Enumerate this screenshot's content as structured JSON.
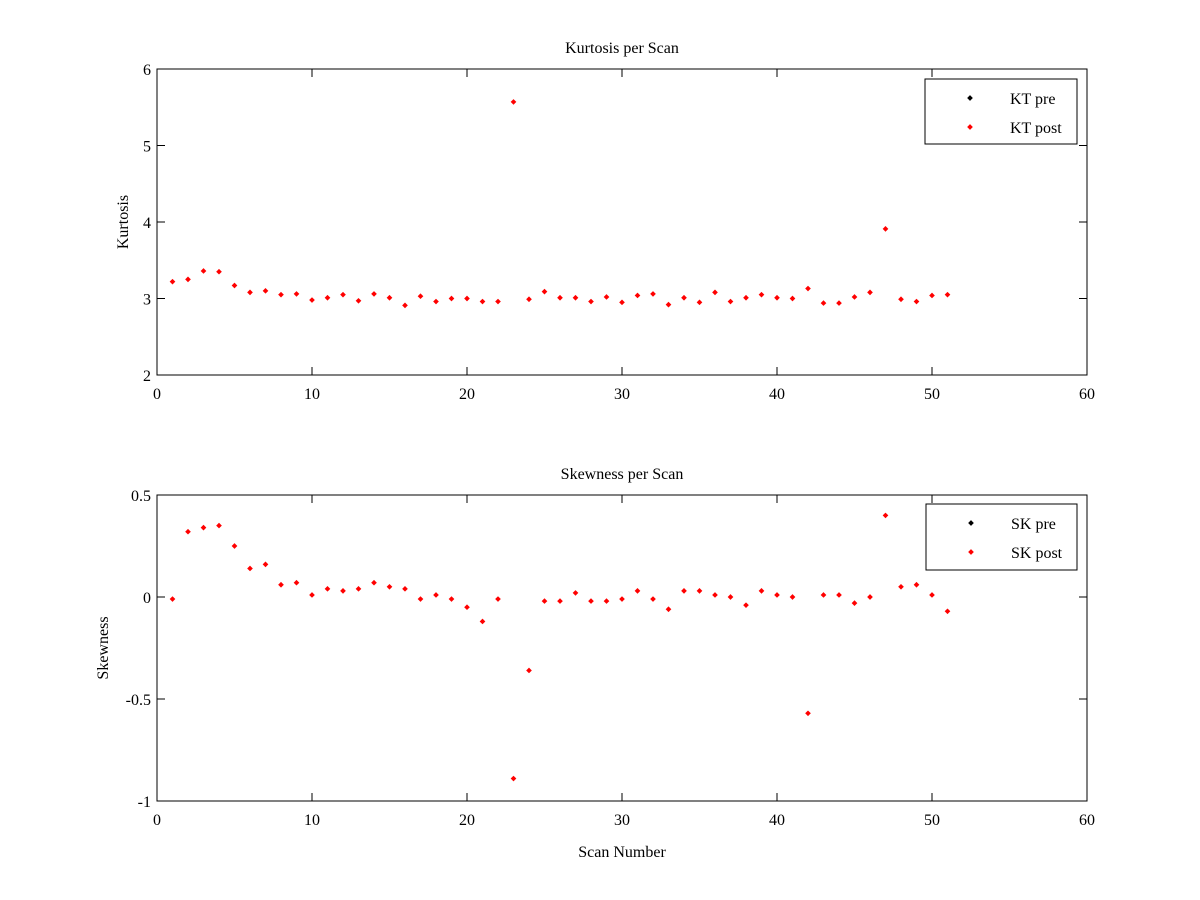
{
  "chart_data": [
    {
      "type": "scatter",
      "title": "Kurtosis per Scan",
      "xlabel": "",
      "ylabel": "Kurtosis",
      "xlim": [
        0,
        60
      ],
      "ylim": [
        2,
        6
      ],
      "xticks": [
        "0",
        "10",
        "20",
        "30",
        "40",
        "50",
        "60"
      ],
      "yticks": [
        "2",
        "3",
        "4",
        "5",
        "6"
      ],
      "grid": false,
      "legend_position": "top-right",
      "series": [
        {
          "name": "KT pre",
          "color": "#000000",
          "x": [],
          "y": []
        },
        {
          "name": "KT post",
          "color": "#ff0000",
          "x": [
            1,
            2,
            3,
            4,
            5,
            6,
            7,
            8,
            9,
            10,
            11,
            12,
            13,
            14,
            15,
            16,
            17,
            18,
            19,
            20,
            21,
            22,
            23,
            24,
            25,
            26,
            27,
            28,
            29,
            30,
            31,
            32,
            33,
            34,
            35,
            36,
            37,
            38,
            39,
            40,
            41,
            42,
            43,
            44,
            45,
            46,
            47,
            48,
            49,
            50,
            51
          ],
          "y": [
            3.22,
            3.25,
            3.36,
            3.35,
            3.17,
            3.08,
            3.1,
            3.05,
            3.06,
            2.98,
            3.01,
            3.05,
            2.97,
            3.06,
            3.01,
            2.91,
            3.03,
            2.96,
            3.0,
            3.0,
            2.96,
            2.96,
            5.57,
            2.99,
            3.09,
            3.01,
            3.01,
            2.96,
            3.02,
            2.95,
            3.04,
            3.06,
            2.92,
            3.01,
            2.95,
            3.08,
            2.96,
            3.01,
            3.05,
            3.01,
            3.0,
            3.13,
            2.94,
            2.94,
            3.02,
            3.08,
            3.91,
            2.99,
            2.96,
            3.04,
            3.05
          ]
        }
      ]
    },
    {
      "type": "scatter",
      "title": "Skewness per Scan",
      "xlabel": "Scan Number",
      "ylabel": "Skewness",
      "xlim": [
        0,
        60
      ],
      "ylim": [
        -1,
        0.5
      ],
      "xticks": [
        "0",
        "10",
        "20",
        "30",
        "40",
        "50",
        "60"
      ],
      "yticks": [
        "-1",
        "-0.5",
        "0",
        "0.5"
      ],
      "grid": false,
      "legend_position": "top-right",
      "series": [
        {
          "name": "SK pre",
          "color": "#000000",
          "x": [],
          "y": []
        },
        {
          "name": "SK post",
          "color": "#ff0000",
          "x": [
            1,
            2,
            3,
            4,
            5,
            6,
            7,
            8,
            9,
            10,
            11,
            12,
            13,
            14,
            15,
            16,
            17,
            18,
            19,
            20,
            21,
            22,
            23,
            24,
            25,
            26,
            27,
            28,
            29,
            30,
            31,
            32,
            33,
            34,
            35,
            36,
            37,
            38,
            39,
            40,
            41,
            42,
            43,
            44,
            45,
            46,
            47,
            48,
            49,
            50,
            51
          ],
          "y": [
            -0.01,
            0.32,
            0.34,
            0.35,
            0.25,
            0.14,
            0.16,
            0.06,
            0.07,
            0.01,
            0.04,
            0.03,
            0.04,
            0.07,
            0.05,
            0.04,
            -0.01,
            0.01,
            -0.01,
            -0.05,
            -0.12,
            -0.01,
            -0.89,
            -0.36,
            -0.02,
            -0.02,
            0.02,
            -0.02,
            -0.02,
            -0.01,
            0.03,
            -0.01,
            -0.06,
            0.03,
            0.03,
            0.01,
            0.0,
            -0.04,
            0.03,
            0.01,
            0.0,
            -0.57,
            0.01,
            0.01,
            -0.03,
            0.0,
            0.4,
            0.05,
            0.06,
            0.01,
            -0.07
          ]
        }
      ]
    }
  ]
}
